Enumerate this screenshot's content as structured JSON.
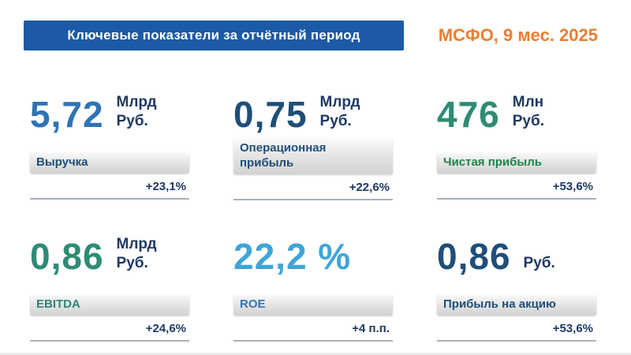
{
  "header": {
    "title": "Ключевые показатели за отчётный период",
    "period": "МСФО, 9 мес. 2025"
  },
  "colors": {
    "header_bg": "#1c5aa6",
    "header_text": "#ffffff",
    "period_text": "#ed7d31",
    "unit_text": "#1f3864",
    "change_text": "#1f3864",
    "underline": "#a9b2ba"
  },
  "cards": [
    {
      "value": "5,72",
      "unit": "Млрд\nРуб.",
      "label": "Выручка",
      "change": "+23,1%",
      "value_color": "#2e74b5",
      "label_color": "#1f4e79"
    },
    {
      "value": "0,75",
      "unit": "Млрд\nРуб.",
      "label": "Операционная\nприбыль",
      "change": "+22,6%",
      "value_color": "#1f4e79",
      "label_color": "#1f4e79"
    },
    {
      "value": "476",
      "unit": "Млн\nРуб.",
      "label": "Чистая прибыль",
      "change": "+53,6%",
      "value_color": "#2e8b74",
      "label_color": "#1e8449"
    },
    {
      "value": "0,86",
      "unit": "Млрд\nРуб.",
      "label": "EBITDA",
      "change": "+24,6%",
      "value_color": "#2e8b74",
      "label_color": "#2f8575"
    },
    {
      "value": "22,2 %",
      "unit": "",
      "label": "ROE",
      "change": "+4 п.п.",
      "value_color": "#3fa5d8",
      "label_color": "#2e75b6"
    },
    {
      "value": "0,86",
      "unit": "Руб.",
      "label": "Прибыль на акцию",
      "change": "+53,6%",
      "value_color": "#1f4e79",
      "label_color": "#1f4e79"
    }
  ]
}
